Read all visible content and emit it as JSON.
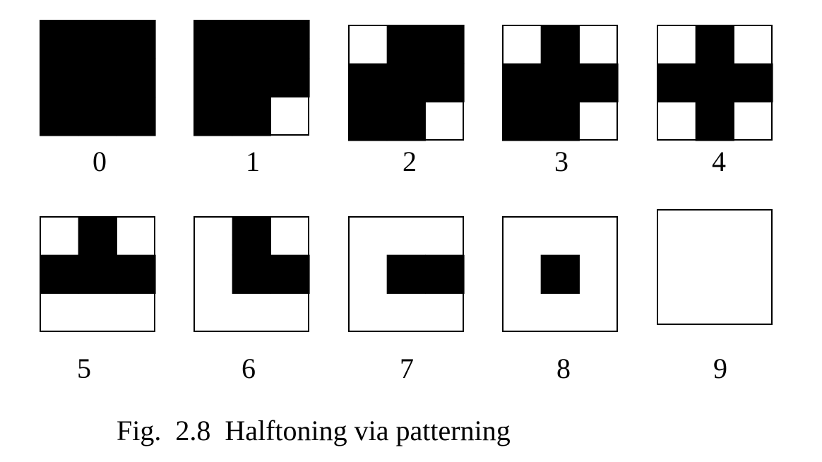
{
  "figure": {
    "caption": "Fig.  2.8  Halftoning via patterning",
    "fill_color": "#000000",
    "empty_color": "#ffffff",
    "patterns": [
      {
        "label": "0",
        "cells": [
          [
            1,
            1,
            1
          ],
          [
            1,
            1,
            1
          ],
          [
            1,
            1,
            1
          ]
        ]
      },
      {
        "label": "1",
        "cells": [
          [
            1,
            1,
            1
          ],
          [
            1,
            1,
            1
          ],
          [
            1,
            1,
            0
          ]
        ]
      },
      {
        "label": "2",
        "cells": [
          [
            0,
            1,
            1
          ],
          [
            1,
            1,
            1
          ],
          [
            1,
            1,
            0
          ]
        ]
      },
      {
        "label": "3",
        "cells": [
          [
            0,
            1,
            0
          ],
          [
            1,
            1,
            1
          ],
          [
            1,
            1,
            0
          ]
        ]
      },
      {
        "label": "4",
        "cells": [
          [
            0,
            1,
            0
          ],
          [
            1,
            1,
            1
          ],
          [
            0,
            1,
            0
          ]
        ]
      },
      {
        "label": "5",
        "cells": [
          [
            0,
            1,
            0
          ],
          [
            1,
            1,
            1
          ],
          [
            0,
            0,
            0
          ]
        ]
      },
      {
        "label": "6",
        "cells": [
          [
            0,
            1,
            0
          ],
          [
            0,
            1,
            1
          ],
          [
            0,
            0,
            0
          ]
        ]
      },
      {
        "label": "7",
        "cells": [
          [
            0,
            0,
            0
          ],
          [
            0,
            1,
            1
          ],
          [
            0,
            0,
            0
          ]
        ]
      },
      {
        "label": "8",
        "cells": [
          [
            0,
            0,
            0
          ],
          [
            0,
            1,
            0
          ],
          [
            0,
            0,
            0
          ]
        ]
      },
      {
        "label": "9",
        "cells": [
          [
            0,
            0,
            0
          ],
          [
            0,
            0,
            0
          ],
          [
            0,
            0,
            0
          ]
        ]
      }
    ]
  }
}
